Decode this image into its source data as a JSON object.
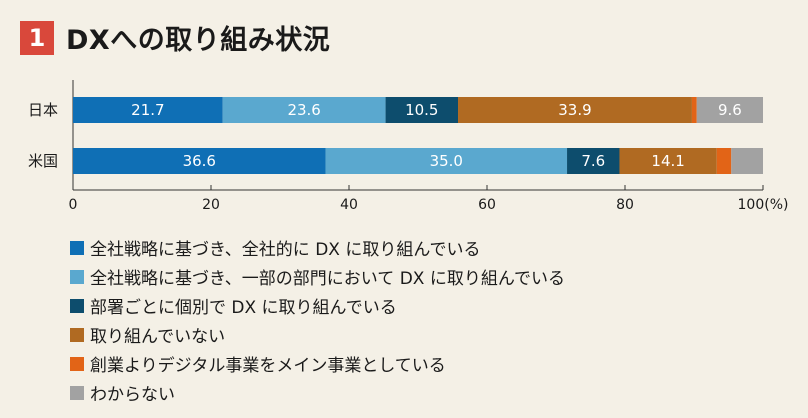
{
  "header": {
    "number": "1",
    "title": "DXへの取り組み状況"
  },
  "chart_data": {
    "type": "bar",
    "orientation": "horizontal",
    "stacked": true,
    "categories": [
      "日本",
      "米国"
    ],
    "series": [
      {
        "name": "全社戦略に基づき、全社的に DX に取り組んでいる",
        "color": "#0f6fb5",
        "values": [
          21.7,
          36.6
        ],
        "labels": [
          "21.7",
          "36.6"
        ]
      },
      {
        "name": "全社戦略に基づき、一部の部門において DX に取り組んでいる",
        "color": "#5aa8cf",
        "values": [
          23.6,
          35.0
        ],
        "labels": [
          "23.6",
          "35.0"
        ]
      },
      {
        "name": "部署ごとに個別で DX に取り組んでいる",
        "color": "#0d4d6d",
        "values": [
          10.5,
          7.6
        ],
        "labels": [
          "10.5",
          "7.6"
        ]
      },
      {
        "name": "取り組んでいない",
        "color": "#b06a22",
        "values": [
          33.9,
          14.1
        ],
        "labels": [
          "33.9",
          "14.1"
        ]
      },
      {
        "name": "創業よりデジタル事業をメイン事業としている",
        "color": "#e26417",
        "values": [
          0.7,
          2.1
        ],
        "labels": [
          "",
          ""
        ]
      },
      {
        "name": "わからない",
        "color": "#a2a2a2",
        "values": [
          9.6,
          4.6
        ],
        "labels": [
          "9.6",
          ""
        ]
      }
    ],
    "xlim": [
      0,
      100
    ],
    "xticks": [
      "0",
      "20",
      "40",
      "60",
      "80",
      "100(%)"
    ],
    "legend_position": "bottom"
  }
}
